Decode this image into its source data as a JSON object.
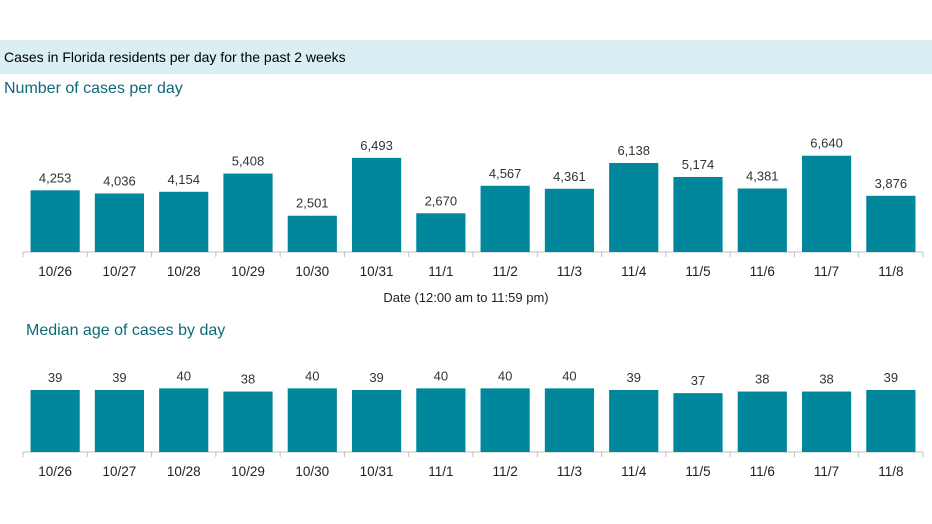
{
  "banner": {
    "title": "Cases in Florida residents per day for the past 2 weeks"
  },
  "chart_data": [
    {
      "type": "bar",
      "title": "Number of cases per day",
      "xlabel": "Date (12:00 am to 11:59 pm)",
      "categories": [
        "10/26",
        "10/27",
        "10/28",
        "10/29",
        "10/30",
        "10/31",
        "11/1",
        "11/2",
        "11/3",
        "11/4",
        "11/5",
        "11/6",
        "11/7",
        "11/8"
      ],
      "values": [
        4253,
        4036,
        4154,
        5408,
        2501,
        6493,
        2670,
        4567,
        4361,
        6138,
        5174,
        4381,
        6640,
        3876
      ],
      "value_labels": [
        "4,253",
        "4,036",
        "4,154",
        "5,408",
        "2,501",
        "6,493",
        "2,670",
        "4,567",
        "4,361",
        "6,138",
        "5,174",
        "4,381",
        "6,640",
        "3,876"
      ],
      "ylim": [
        0,
        8000
      ],
      "color": "#00879b",
      "grid": false
    },
    {
      "type": "bar",
      "title": "Median age of cases by day",
      "categories": [
        "10/26",
        "10/27",
        "10/28",
        "10/29",
        "10/30",
        "10/31",
        "11/1",
        "11/2",
        "11/3",
        "11/4",
        "11/5",
        "11/6",
        "11/7",
        "11/8"
      ],
      "values": [
        39,
        39,
        40,
        38,
        40,
        39,
        40,
        40,
        40,
        39,
        37,
        38,
        38,
        39
      ],
      "value_labels": [
        "39",
        "39",
        "40",
        "38",
        "40",
        "39",
        "40",
        "40",
        "40",
        "39",
        "37",
        "38",
        "38",
        "39"
      ],
      "ylim": [
        0,
        44
      ],
      "color": "#00879b",
      "grid": false
    }
  ]
}
